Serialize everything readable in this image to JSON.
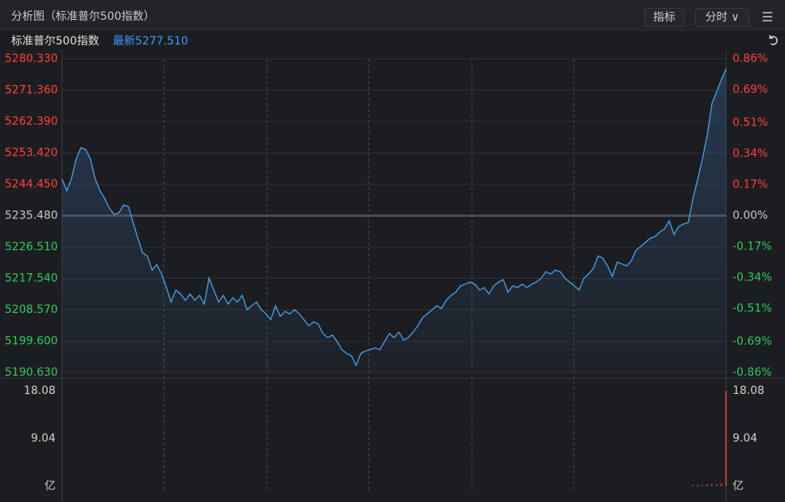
{
  "header": {
    "title": "分析图（标准普尔500指数）",
    "buttons": [
      "指标",
      "分时"
    ]
  },
  "quote": {
    "name": "标准普尔500指数",
    "latest": "最新5277.510"
  },
  "chart_data": {
    "type": "line",
    "color": "#4aa3f0",
    "values": [
      5246.0,
      5242.6,
      5246.0,
      5251.7,
      5254.9,
      5254.4,
      5251.7,
      5246.0,
      5242.6,
      5240.4,
      5237.6,
      5235.8,
      5236.3,
      5238.5,
      5238.1,
      5233.5,
      5229.0,
      5224.9,
      5223.9,
      5219.9,
      5221.5,
      5218.8,
      5214.9,
      5210.8,
      5214.2,
      5213.1,
      5211.3,
      5213.1,
      5211.3,
      5212.7,
      5210.2,
      5217.6,
      5214.2,
      5210.8,
      5212.7,
      5210.2,
      5212.0,
      5210.8,
      5212.7,
      5208.6,
      5209.7,
      5210.8,
      5208.6,
      5207.4,
      5205.8,
      5209.7,
      5206.7,
      5208.1,
      5207.4,
      5208.6,
      5207.4,
      5205.8,
      5204.0,
      5205.1,
      5204.5,
      5201.8,
      5200.6,
      5201.3,
      5199.5,
      5197.2,
      5196.1,
      5195.4,
      5192.7,
      5196.1,
      5196.8,
      5197.2,
      5197.7,
      5197.2,
      5199.5,
      5201.8,
      5200.6,
      5202.2,
      5199.9,
      5200.6,
      5202.2,
      5204.0,
      5206.3,
      5207.4,
      5208.6,
      5209.7,
      5209.0,
      5211.3,
      5212.7,
      5213.6,
      5215.4,
      5215.9,
      5216.5,
      5215.9,
      5214.2,
      5214.9,
      5213.1,
      5215.4,
      5216.5,
      5217.2,
      5213.6,
      5215.4,
      5214.9,
      5215.9,
      5214.9,
      5215.9,
      5216.5,
      5217.6,
      5219.5,
      5218.8,
      5219.9,
      5219.5,
      5217.6,
      5216.5,
      5215.4,
      5214.2,
      5217.6,
      5218.8,
      5220.4,
      5224.0,
      5223.3,
      5221.1,
      5218.1,
      5222.2,
      5221.7,
      5221.1,
      5222.6,
      5225.6,
      5226.7,
      5227.9,
      5229.0,
      5229.5,
      5230.8,
      5231.7,
      5234.0,
      5230.1,
      5232.4,
      5233.1,
      5233.5,
      5240.4,
      5246.0,
      5251.7,
      5258.5,
      5267.6,
      5271.0,
      5274.4,
      5277.51
    ],
    "ylim": [
      5190.63,
      5280.33
    ],
    "yticks": [
      {
        "value": 5280.33,
        "label": "5280.330"
      },
      {
        "value": 5271.36,
        "label": "5271.360"
      },
      {
        "value": 5262.39,
        "label": "5262.390"
      },
      {
        "value": 5253.42,
        "label": "5253.420"
      },
      {
        "value": 5244.45,
        "label": "5244.450"
      },
      {
        "value": 5235.48,
        "label": "5235.480"
      },
      {
        "value": 5226.51,
        "label": "5226.510"
      },
      {
        "value": 5217.54,
        "label": "5217.540"
      },
      {
        "value": 5208.57,
        "label": "5208.570"
      },
      {
        "value": 5199.6,
        "label": "5199.600"
      },
      {
        "value": 5190.63,
        "label": "5190.630"
      }
    ],
    "y2lim": [
      -0.86,
      0.86
    ],
    "y2ticks": [
      {
        "value": 0.86,
        "label": "0.86%"
      },
      {
        "value": 0.69,
        "label": "0.69%"
      },
      {
        "value": 0.51,
        "label": "0.51%"
      },
      {
        "value": 0.34,
        "label": "0.34%"
      },
      {
        "value": 0.17,
        "label": "0.17%"
      },
      {
        "value": 0,
        "label": "0.00%"
      },
      {
        "value": -0.17,
        "label": "-0.17%"
      },
      {
        "value": -0.34,
        "label": "-0.34%"
      },
      {
        "value": -0.51,
        "label": "-0.51%"
      },
      {
        "value": -0.69,
        "label": "-0.69%"
      },
      {
        "value": -0.86,
        "label": "-0.86%"
      }
    ],
    "up_color": "#ff4040",
    "down_color": "#2ecc5e",
    "flat_color": "#c8c8c8",
    "volume": {
      "color": "#e84545",
      "ylim": [
        0,
        18.08
      ],
      "yticks": [
        9.04,
        18.08
      ],
      "unit": "亿",
      "values": [
        0,
        0,
        0,
        0,
        0,
        0,
        0,
        0,
        0,
        0,
        0,
        0,
        0,
        0,
        0,
        0,
        0,
        0,
        0,
        0,
        0,
        0,
        0,
        0,
        0,
        0,
        0,
        0,
        0,
        0,
        0,
        0,
        0,
        0,
        0,
        0,
        0,
        0,
        0,
        0,
        0,
        0,
        0,
        0,
        0,
        0,
        0,
        0,
        0,
        0,
        0,
        0,
        0,
        0,
        0,
        0,
        0,
        0,
        0,
        0,
        0,
        0,
        0,
        0,
        0,
        0,
        0,
        0,
        0,
        0,
        0,
        0,
        0,
        0,
        0,
        0,
        0,
        0,
        0,
        0,
        0,
        0,
        0,
        0,
        0,
        0,
        0,
        0,
        0,
        0,
        0,
        0,
        0,
        0,
        0,
        0,
        0,
        0,
        0,
        0,
        0,
        0,
        0,
        0,
        0,
        0,
        0,
        0,
        0,
        0,
        0,
        0,
        0,
        0,
        0,
        0,
        0,
        0,
        0,
        0,
        0,
        0,
        0,
        0,
        0,
        0,
        0,
        0,
        0,
        0,
        0,
        0,
        0,
        0.2,
        0.3,
        0.2,
        0.3,
        0.4,
        0.3,
        0.5,
        18.08
      ]
    }
  }
}
